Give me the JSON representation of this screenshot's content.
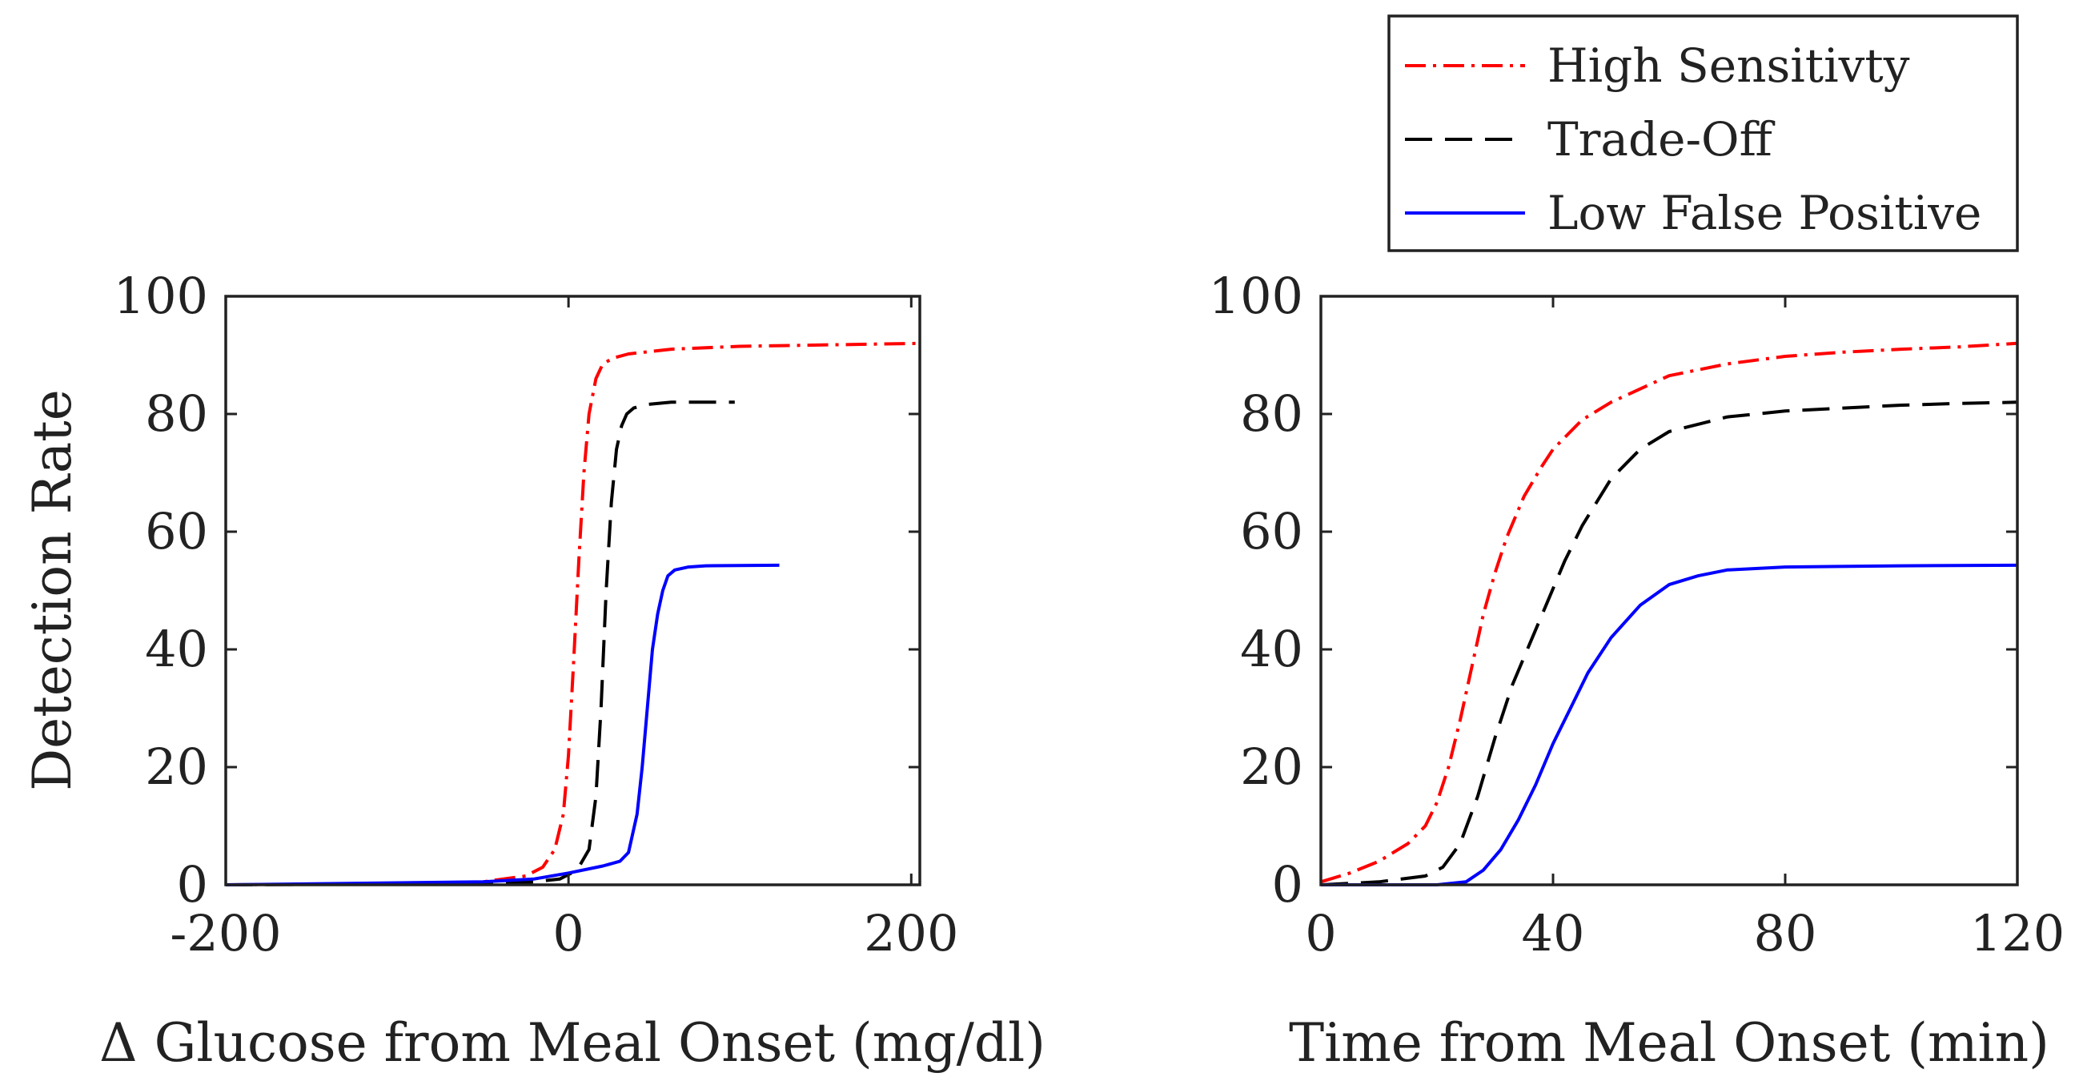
{
  "legend": {
    "entries": [
      {
        "label": "High Sensitivty",
        "color": "#ff0000",
        "style": "dash-dot"
      },
      {
        "label": "Trade-Off",
        "color": "#000000",
        "style": "dashed"
      },
      {
        "label": "Low False Positive",
        "color": "#0000ff",
        "style": "solid"
      }
    ]
  },
  "chart_data": [
    {
      "type": "line",
      "xlabel": "Δ Glucose from Meal Onset (mg/dl)",
      "ylabel": "Detection Rate",
      "xlim": [
        -200,
        205
      ],
      "ylim": [
        0,
        100
      ],
      "xticks": [
        -200,
        0,
        200
      ],
      "yticks": [
        0,
        20,
        40,
        60,
        80,
        100
      ],
      "grid": false,
      "series": [
        {
          "name": "High Sensitivty",
          "color": "#ff0000",
          "style": "dash-dot",
          "x": [
            -200,
            -100,
            -50,
            -25,
            -15,
            -8,
            -3,
            0,
            3,
            6,
            9,
            12,
            16,
            20,
            26,
            35,
            60,
            100,
            205
          ],
          "y": [
            0,
            0.2,
            0.5,
            1.5,
            3,
            6,
            12,
            22,
            38,
            55,
            70,
            80,
            86,
            88.5,
            89.5,
            90.2,
            91,
            91.5,
            92
          ]
        },
        {
          "name": "Trade-Off",
          "color": "#000000",
          "style": "dashed",
          "x": [
            -200,
            -50,
            -20,
            -5,
            5,
            12,
            16,
            19,
            22,
            25,
            28,
            31,
            34,
            38,
            45,
            60,
            97
          ],
          "y": [
            0,
            0.2,
            0.5,
            1,
            2.5,
            6,
            15,
            30,
            50,
            65,
            74,
            78,
            80,
            81,
            81.6,
            82,
            82
          ]
        },
        {
          "name": "Low False Positive",
          "color": "#0000ff",
          "style": "solid",
          "x": [
            -200,
            -50,
            -20,
            0,
            20,
            30,
            35,
            40,
            43,
            46,
            49,
            52,
            55,
            58,
            62,
            70,
            80,
            123
          ],
          "y": [
            0,
            0.5,
            1,
            2,
            3.2,
            4,
            5.5,
            12,
            20,
            30,
            40,
            46,
            50,
            52.5,
            53.5,
            54,
            54.2,
            54.3
          ]
        }
      ]
    },
    {
      "type": "line",
      "xlabel": "Time from Meal Onset (min)",
      "ylabel": "",
      "xlim": [
        0,
        120
      ],
      "ylim": [
        0,
        100
      ],
      "xticks": [
        0,
        40,
        80,
        120
      ],
      "yticks": [
        0,
        20,
        40,
        60,
        80,
        100
      ],
      "grid": false,
      "series": [
        {
          "name": "High Sensitivty",
          "color": "#ff0000",
          "style": "dash-dot",
          "x": [
            0,
            5,
            10,
            15,
            18,
            20,
            22,
            24,
            26,
            28,
            30,
            32,
            35,
            38,
            40,
            45,
            50,
            60,
            70,
            80,
            90,
            100,
            110,
            120
          ],
          "y": [
            0.5,
            2,
            4,
            7,
            10,
            14,
            20,
            28,
            37,
            46,
            53,
            59,
            66,
            71,
            74,
            79,
            82,
            86.5,
            88.5,
            89.8,
            90.5,
            91,
            91.4,
            92
          ]
        },
        {
          "name": "Trade-Off",
          "color": "#000000",
          "style": "dashed",
          "x": [
            0,
            10,
            18,
            21,
            24,
            27,
            30,
            33,
            36,
            39,
            42,
            45,
            50,
            55,
            60,
            70,
            80,
            90,
            100,
            110,
            120
          ],
          "y": [
            0,
            0.5,
            1.5,
            3,
            7,
            15,
            25,
            34,
            41,
            48,
            55,
            61,
            69,
            74,
            77,
            79.5,
            80.5,
            81,
            81.5,
            81.8,
            82
          ]
        },
        {
          "name": "Low False Positive",
          "color": "#0000ff",
          "style": "solid",
          "x": [
            0,
            20,
            25,
            28,
            31,
            34,
            37,
            40,
            43,
            46,
            50,
            55,
            60,
            65,
            70,
            80,
            100,
            120
          ],
          "y": [
            0,
            0,
            0.5,
            2.5,
            6,
            11,
            17,
            24,
            30,
            36,
            42,
            47.5,
            51,
            52.5,
            53.5,
            54,
            54.2,
            54.3
          ]
        }
      ]
    }
  ]
}
